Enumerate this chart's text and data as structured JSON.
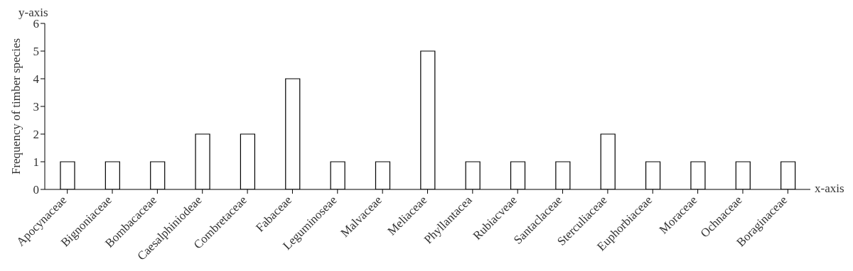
{
  "chart_data": {
    "type": "bar",
    "ylabel": "Frequency of timber species",
    "xlabel": "x-axis",
    "annotations": [
      "y-axis"
    ],
    "categories": [
      "Apocynaceae",
      "Bignoniaceae",
      "Bombacaceae",
      "Caesalphiniodeae",
      "Combretaceae",
      "Fabaceae",
      "Leguminoseae",
      "Malvaceae",
      "Meliaceae",
      "Phyllantacea",
      "Rubiacveae",
      "Santaclaceae",
      "Sterculiaceae",
      "Euphorbiaceae",
      "Moraceae",
      "Ochnaceae",
      "Boraginaceae"
    ],
    "values": [
      1,
      1,
      1,
      2,
      2,
      4,
      1,
      1,
      5,
      1,
      1,
      1,
      2,
      1,
      1,
      1,
      1
    ],
    "color": "#ffffff",
    "ylim": [
      0,
      6
    ],
    "yticks": [
      0,
      1,
      2,
      3,
      4,
      5,
      6
    ],
    "grid": false
  }
}
